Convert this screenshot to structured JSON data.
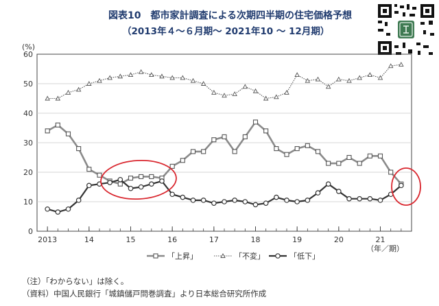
{
  "header": {
    "title": "図表10　都市家計調査による次期四半期の住宅価格予想",
    "subtitle": "（2013年４～６月期～ 2021年10 ～ 12月期）"
  },
  "notes": {
    "note": "（注）「わからない」は除く。",
    "source": "（資料）中国人民銀行「城鎮儲戸問巻調査」より日本総合研究所作成"
  },
  "colors": {
    "series": "#555555",
    "annotation_circle": "#d9262e",
    "title": "#1f3a6e"
  },
  "chart_data": {
    "type": "line",
    "ylabel": "(%)",
    "xlabel": "（年／期）",
    "ylim": [
      0,
      60
    ],
    "yticks": [
      0,
      10,
      20,
      30,
      40,
      50,
      60
    ],
    "xticks": [
      {
        "label": "2013",
        "x": 1
      },
      {
        "label": "14",
        "x": 5
      },
      {
        "label": "15",
        "x": 9
      },
      {
        "label": "16",
        "x": 13
      },
      {
        "label": "17",
        "x": 17
      },
      {
        "label": "18",
        "x": 21
      },
      {
        "label": "19",
        "x": 25
      },
      {
        "label": "20",
        "x": 29
      },
      {
        "label": "21",
        "x": 33
      }
    ],
    "x": [
      1,
      2,
      3,
      4,
      5,
      6,
      7,
      8,
      9,
      10,
      11,
      12,
      13,
      14,
      15,
      16,
      17,
      18,
      19,
      20,
      21,
      22,
      23,
      24,
      25,
      26,
      27,
      28,
      29,
      30,
      31,
      32,
      33,
      34,
      35
    ],
    "grid": true,
    "legend_position": "bottom",
    "series": [
      {
        "name": "「上昇」",
        "marker": "square",
        "values": [
          34,
          36,
          33,
          28,
          21,
          19,
          17,
          16,
          18,
          18.5,
          18.5,
          18,
          22,
          24,
          27,
          27,
          31,
          32,
          27,
          32,
          37,
          34,
          28,
          26,
          28,
          29,
          27,
          23,
          23,
          25,
          23,
          25.5,
          25.5,
          20,
          16
        ]
      },
      {
        "name": "「不変」",
        "marker": "triangle",
        "values": [
          45,
          45,
          47,
          48,
          50,
          51,
          52,
          52.5,
          53,
          54,
          53,
          52.5,
          52,
          52,
          51,
          50,
          47,
          46,
          46.5,
          49,
          47.5,
          45,
          45.5,
          47,
          53,
          51,
          51.5,
          49,
          51.5,
          51,
          52,
          53,
          52,
          56,
          56.5
        ]
      },
      {
        "name": "「低下」",
        "marker": "circle",
        "values": [
          7.5,
          6.5,
          7.5,
          10.5,
          15.5,
          16,
          16.5,
          17.5,
          14.5,
          15,
          16,
          17,
          12.5,
          11.5,
          10.5,
          10.5,
          9.5,
          10,
          10.5,
          10,
          9,
          9.5,
          11.5,
          10.5,
          10,
          10.5,
          13,
          16,
          13.5,
          11,
          11,
          11,
          10.5,
          12.5,
          15.5
        ]
      }
    ]
  }
}
